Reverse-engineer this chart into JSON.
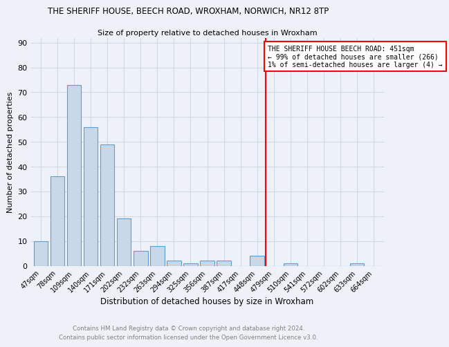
{
  "title": "THE SHERIFF HOUSE, BEECH ROAD, WROXHAM, NORWICH, NR12 8TP",
  "subtitle": "Size of property relative to detached houses in Wroxham",
  "xlabel": "Distribution of detached houses by size in Wroxham",
  "ylabel": "Number of detached properties",
  "footer_line1": "Contains HM Land Registry data © Crown copyright and database right 2024.",
  "footer_line2": "Contains public sector information licensed under the Open Government Licence v3.0.",
  "bar_labels": [
    "47sqm",
    "78sqm",
    "109sqm",
    "140sqm",
    "171sqm",
    "202sqm",
    "232sqm",
    "263sqm",
    "294sqm",
    "325sqm",
    "356sqm",
    "387sqm",
    "417sqm",
    "448sqm",
    "479sqm",
    "510sqm",
    "541sqm",
    "572sqm",
    "602sqm",
    "633sqm",
    "664sqm"
  ],
  "bar_values": [
    10,
    36,
    73,
    56,
    49,
    19,
    6,
    8,
    2,
    1,
    2,
    2,
    0,
    4,
    0,
    1,
    0,
    0,
    0,
    1,
    0
  ],
  "bar_color": "#c8d8e8",
  "bar_edge_color": "#5a9fd4",
  "grid_color": "#d0d8e8",
  "property_line_x": 13.5,
  "property_line_label": "THE SHERIFF HOUSE BEECH ROAD: 451sqm",
  "property_line_label2": "← 99% of detached houses are smaller (266)",
  "property_line_label3": "1% of semi-detached houses are larger (4) →",
  "property_line_color": "red",
  "ylim": [
    0,
    92
  ],
  "yticks": [
    0,
    10,
    20,
    30,
    40,
    50,
    60,
    70,
    80,
    90
  ],
  "bg_color": "#eef2f8",
  "plot_bg_color": "#eef2f8",
  "title_fontsize": 8.5,
  "subtitle_fontsize": 8.5
}
